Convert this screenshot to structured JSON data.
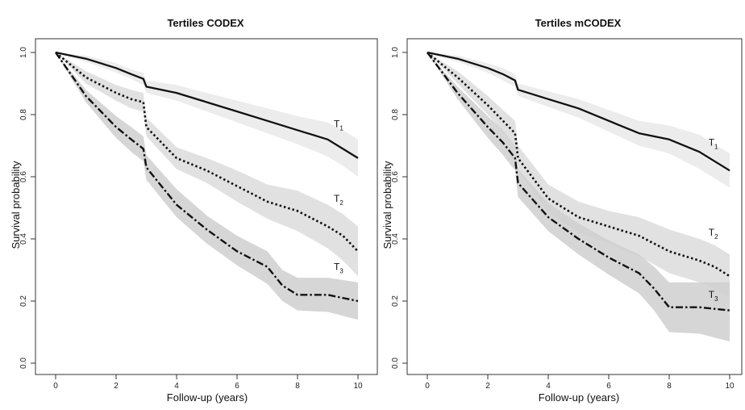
{
  "chart_data": [
    {
      "type": "line",
      "title": "Tertiles CODEX",
      "xlabel": "Follow-up (years)",
      "ylabel": "Survival probability",
      "xlim": [
        0,
        10
      ],
      "ylim": [
        0,
        1
      ],
      "xticks": [
        "0",
        "2",
        "4",
        "6",
        "8",
        "10"
      ],
      "yticks": [
        "0.0",
        "0.2",
        "0.4",
        "0.6",
        "0.8",
        "1.0"
      ],
      "grid": false,
      "series": [
        {
          "name": "T1",
          "line_style": "solid",
          "x": [
            0,
            1,
            2,
            2.5,
            2.9,
            3.0,
            4,
            5,
            6,
            7,
            8,
            9,
            9.5,
            10
          ],
          "y": [
            1.0,
            0.98,
            0.95,
            0.93,
            0.915,
            0.89,
            0.87,
            0.84,
            0.81,
            0.78,
            0.75,
            0.72,
            0.69,
            0.66
          ],
          "ci_lower": [
            1.0,
            0.97,
            0.935,
            0.915,
            0.895,
            0.87,
            0.845,
            0.81,
            0.775,
            0.74,
            0.705,
            0.665,
            0.635,
            0.6
          ],
          "ci_upper": [
            1.0,
            0.99,
            0.965,
            0.945,
            0.935,
            0.91,
            0.895,
            0.87,
            0.845,
            0.82,
            0.795,
            0.775,
            0.75,
            0.72
          ]
        },
        {
          "name": "T2",
          "line_style": "dotted",
          "x": [
            0,
            1,
            2,
            2.5,
            2.9,
            3.0,
            4,
            5,
            6,
            7,
            8,
            9,
            9.5,
            10
          ],
          "y": [
            1.0,
            0.92,
            0.87,
            0.85,
            0.84,
            0.76,
            0.66,
            0.62,
            0.57,
            0.52,
            0.49,
            0.44,
            0.41,
            0.36
          ],
          "ci_lower": [
            1.0,
            0.9,
            0.845,
            0.82,
            0.81,
            0.73,
            0.625,
            0.58,
            0.52,
            0.465,
            0.425,
            0.37,
            0.33,
            0.28
          ],
          "ci_upper": [
            1.0,
            0.94,
            0.895,
            0.88,
            0.87,
            0.79,
            0.695,
            0.66,
            0.62,
            0.575,
            0.555,
            0.51,
            0.48,
            0.44
          ]
        },
        {
          "name": "T3",
          "line_style": "dashdot",
          "x": [
            0,
            1,
            2,
            2.5,
            2.9,
            3.0,
            4,
            5,
            6,
            7,
            7.5,
            8,
            9,
            10
          ],
          "y": [
            1.0,
            0.86,
            0.76,
            0.72,
            0.69,
            0.63,
            0.51,
            0.43,
            0.36,
            0.31,
            0.25,
            0.22,
            0.22,
            0.2
          ],
          "ci_lower": [
            1.0,
            0.84,
            0.725,
            0.68,
            0.65,
            0.59,
            0.47,
            0.385,
            0.315,
            0.255,
            0.2,
            0.17,
            0.165,
            0.14
          ],
          "ci_upper": [
            1.0,
            0.88,
            0.795,
            0.76,
            0.73,
            0.67,
            0.56,
            0.475,
            0.41,
            0.36,
            0.3,
            0.275,
            0.275,
            0.26
          ]
        }
      ],
      "curve_labels": [
        {
          "label": "T",
          "sub": "1",
          "x": 9.2,
          "y": 0.76
        },
        {
          "label": "T",
          "sub": "2",
          "x": 9.2,
          "y": 0.52
        },
        {
          "label": "T",
          "sub": "3",
          "x": 9.2,
          "y": 0.3
        }
      ]
    },
    {
      "type": "line",
      "title": "Tertiles mCODEX",
      "xlabel": "Follow-up (years)",
      "ylabel": "Survival probability",
      "xlim": [
        0,
        10
      ],
      "ylim": [
        0,
        1
      ],
      "xticks": [
        "0",
        "2",
        "4",
        "6",
        "8",
        "10"
      ],
      "yticks": [
        "0.0",
        "0.2",
        "0.4",
        "0.6",
        "0.8",
        "1.0"
      ],
      "grid": false,
      "series": [
        {
          "name": "T1",
          "line_style": "solid",
          "x": [
            0,
            1,
            2,
            2.5,
            2.9,
            3.0,
            4,
            5,
            6,
            7,
            8,
            9,
            9.5,
            10
          ],
          "y": [
            1.0,
            0.98,
            0.95,
            0.93,
            0.91,
            0.88,
            0.85,
            0.82,
            0.78,
            0.74,
            0.72,
            0.68,
            0.65,
            0.62
          ],
          "ci_lower": [
            1.0,
            0.97,
            0.935,
            0.91,
            0.89,
            0.86,
            0.825,
            0.79,
            0.745,
            0.7,
            0.675,
            0.625,
            0.595,
            0.565
          ],
          "ci_upper": [
            1.0,
            0.99,
            0.965,
            0.95,
            0.93,
            0.9,
            0.875,
            0.85,
            0.815,
            0.78,
            0.765,
            0.735,
            0.705,
            0.675
          ]
        },
        {
          "name": "T2",
          "line_style": "dotted",
          "x": [
            0,
            1,
            2,
            2.5,
            2.9,
            3.0,
            4,
            5,
            6,
            7,
            8,
            9,
            9.5,
            10
          ],
          "y": [
            1.0,
            0.92,
            0.83,
            0.78,
            0.74,
            0.66,
            0.53,
            0.47,
            0.44,
            0.41,
            0.36,
            0.33,
            0.31,
            0.28
          ],
          "ci_lower": [
            1.0,
            0.9,
            0.8,
            0.745,
            0.7,
            0.62,
            0.485,
            0.42,
            0.385,
            0.345,
            0.29,
            0.26,
            0.24,
            0.21
          ],
          "ci_upper": [
            1.0,
            0.94,
            0.86,
            0.815,
            0.78,
            0.7,
            0.575,
            0.52,
            0.49,
            0.47,
            0.43,
            0.4,
            0.38,
            0.35
          ]
        },
        {
          "name": "T3",
          "line_style": "dashdot",
          "x": [
            0,
            1,
            2,
            2.5,
            2.9,
            3.0,
            4,
            5,
            6,
            7,
            7.5,
            8,
            9,
            10
          ],
          "y": [
            1.0,
            0.87,
            0.76,
            0.71,
            0.66,
            0.58,
            0.47,
            0.4,
            0.34,
            0.29,
            0.24,
            0.18,
            0.18,
            0.17
          ],
          "ci_lower": [
            1.0,
            0.85,
            0.725,
            0.67,
            0.62,
            0.535,
            0.425,
            0.35,
            0.285,
            0.225,
            0.17,
            0.1,
            0.095,
            0.07
          ],
          "ci_upper": [
            1.0,
            0.89,
            0.795,
            0.75,
            0.7,
            0.625,
            0.515,
            0.45,
            0.395,
            0.35,
            0.31,
            0.26,
            0.26,
            0.26
          ]
        }
      ],
      "curve_labels": [
        {
          "label": "T",
          "sub": "1",
          "x": 9.3,
          "y": 0.7
        },
        {
          "label": "T",
          "sub": "2",
          "x": 9.3,
          "y": 0.41
        },
        {
          "label": "T",
          "sub": "3",
          "x": 9.3,
          "y": 0.21
        }
      ]
    }
  ]
}
